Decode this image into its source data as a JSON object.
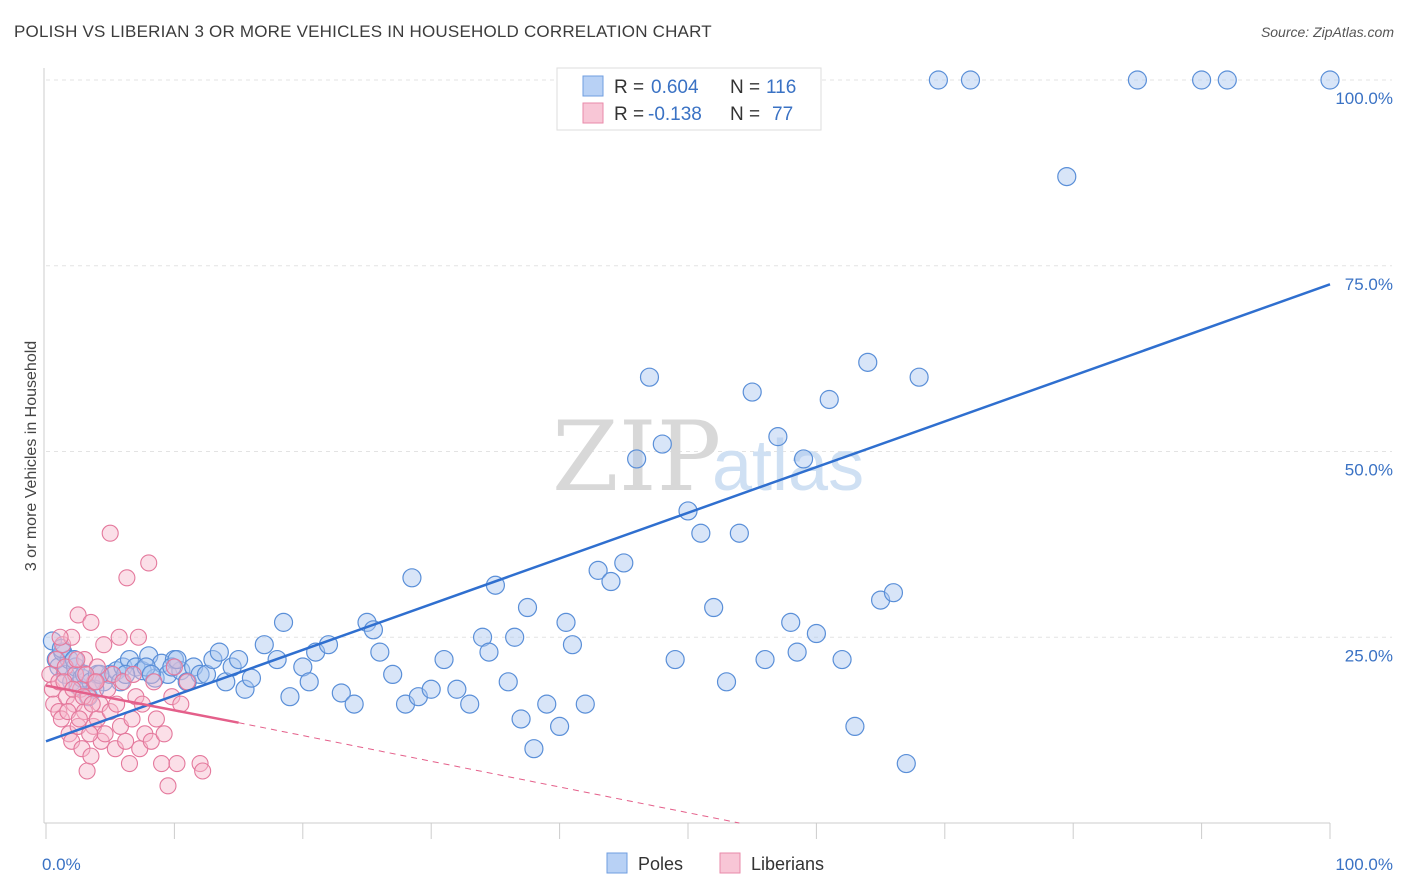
{
  "title": "POLISH VS LIBERIAN 3 OR MORE VEHICLES IN HOUSEHOLD CORRELATION CHART",
  "source": "Source: ZipAtlas.com",
  "watermark": {
    "zip": "ZIP",
    "atlas": "atlas"
  },
  "legend": {
    "r_label": "R =",
    "n_label": "N =",
    "items": [
      {
        "name": "Poles",
        "r": "0.604",
        "n": "116",
        "fill": "#b8d1f5",
        "stroke": "#6f9ee0"
      },
      {
        "name": "Liberians",
        "r": "-0.138",
        "n": "77",
        "fill": "#f8c6d6",
        "stroke": "#e98aa9"
      }
    ]
  },
  "colors": {
    "poles_point": "#a9c6ef",
    "poles_stroke": "#5a8fd8",
    "poles_line": "#2f6fcf",
    "liberians_point": "#f6b8cc",
    "liberians_stroke": "#e4789c",
    "liberians_line": "#e45f8a",
    "grid": "#e3e3e3",
    "axis_text": "#3a72c4"
  },
  "chart_data": {
    "type": "scatter",
    "ylabel": "3 or more Vehicles in Household",
    "xlabel": "",
    "xlim": [
      0,
      100
    ],
    "ylim": [
      0,
      100
    ],
    "x_tick_labels": [
      {
        "value": 0,
        "label": "0.0%"
      },
      {
        "value": 100,
        "label": "100.0%"
      }
    ],
    "y_tick_labels": [
      {
        "value": 25,
        "label": "25.0%"
      },
      {
        "value": 50,
        "label": "50.0%"
      },
      {
        "value": 75,
        "label": "75.0%"
      },
      {
        "value": 100,
        "label": "100.0%"
      }
    ],
    "grid": true,
    "series": [
      {
        "name": "Poles",
        "trend": {
          "x": [
            0,
            100
          ],
          "y": [
            11.0,
            72.5
          ]
        },
        "points": [
          [
            0.5,
            24.5
          ],
          [
            0.8,
            22
          ],
          [
            1,
            21
          ],
          [
            1.3,
            23
          ],
          [
            1.5,
            20
          ],
          [
            1.8,
            22
          ],
          [
            2,
            19
          ],
          [
            2.3,
            21
          ],
          [
            2.5,
            18.5
          ],
          [
            2.8,
            19.5
          ],
          [
            3,
            20
          ],
          [
            3.3,
            17
          ],
          [
            3.5,
            19
          ],
          [
            4,
            20
          ],
          [
            4.5,
            19
          ],
          [
            5,
            20
          ],
          [
            5.5,
            20.5
          ],
          [
            6,
            21
          ],
          [
            6.5,
            22
          ],
          [
            7,
            21
          ],
          [
            7.5,
            20.5
          ],
          [
            8,
            22.5
          ],
          [
            8.5,
            19.5
          ],
          [
            9,
            21.5
          ],
          [
            9.5,
            20
          ],
          [
            10,
            22
          ],
          [
            10.5,
            20.5
          ],
          [
            11,
            19
          ],
          [
            11.5,
            21
          ],
          [
            12,
            20
          ],
          [
            12.5,
            20
          ],
          [
            13,
            22
          ],
          [
            13.5,
            23
          ],
          [
            14,
            19
          ],
          [
            14.5,
            21
          ],
          [
            15,
            22
          ],
          [
            15.5,
            18
          ],
          [
            16,
            19.5
          ],
          [
            17,
            24
          ],
          [
            18,
            22
          ],
          [
            18.5,
            27
          ],
          [
            19,
            17
          ],
          [
            20,
            21
          ],
          [
            20.5,
            19
          ],
          [
            21,
            23
          ],
          [
            22,
            24
          ],
          [
            23,
            17.5
          ],
          [
            24,
            16
          ],
          [
            25,
            27
          ],
          [
            25.5,
            26
          ],
          [
            26,
            23
          ],
          [
            27,
            20
          ],
          [
            28,
            16
          ],
          [
            28.5,
            33
          ],
          [
            29,
            17
          ],
          [
            30,
            18
          ],
          [
            31,
            22
          ],
          [
            32,
            18
          ],
          [
            33,
            16
          ],
          [
            34,
            25
          ],
          [
            34.5,
            23
          ],
          [
            35,
            32
          ],
          [
            36,
            19
          ],
          [
            36.5,
            25
          ],
          [
            37,
            14
          ],
          [
            37.5,
            29
          ],
          [
            38,
            10
          ],
          [
            39,
            16
          ],
          [
            40,
            13
          ],
          [
            40.5,
            27
          ],
          [
            41,
            24
          ],
          [
            42,
            16
          ],
          [
            43,
            34
          ],
          [
            44,
            32.5
          ],
          [
            45,
            35
          ],
          [
            46,
            49
          ],
          [
            47,
            60
          ],
          [
            48,
            51
          ],
          [
            49,
            22
          ],
          [
            50,
            42
          ],
          [
            51,
            39
          ],
          [
            52,
            29
          ],
          [
            53,
            19
          ],
          [
            54,
            39
          ],
          [
            55,
            58
          ],
          [
            56,
            22
          ],
          [
            57,
            52
          ],
          [
            58,
            27
          ],
          [
            58.5,
            23
          ],
          [
            59,
            49
          ],
          [
            60,
            25.5
          ],
          [
            61,
            57
          ],
          [
            62,
            22
          ],
          [
            63,
            13
          ],
          [
            64,
            62
          ],
          [
            65,
            30
          ],
          [
            66,
            31
          ],
          [
            67,
            8
          ],
          [
            68,
            60
          ],
          [
            69.5,
            100
          ],
          [
            72,
            100
          ],
          [
            79.5,
            87
          ],
          [
            85,
            100
          ],
          [
            90,
            100
          ],
          [
            92,
            100
          ],
          [
            100,
            100
          ],
          [
            1.2,
            23.5
          ],
          [
            2.2,
            22
          ],
          [
            3.8,
            18
          ],
          [
            4.2,
            20
          ],
          [
            5.8,
            19
          ],
          [
            6.2,
            20
          ],
          [
            7.8,
            21
          ],
          [
            8.2,
            20
          ],
          [
            9.8,
            21
          ],
          [
            10.2,
            22
          ]
        ]
      },
      {
        "name": "Liberians",
        "trend": {
          "x": [
            0,
            15
          ],
          "y": [
            18.5,
            13.5
          ]
        },
        "trend_dashed": {
          "x": [
            15,
            54
          ],
          "y": [
            13.5,
            0
          ]
        },
        "points": [
          [
            0.3,
            20
          ],
          [
            0.5,
            18
          ],
          [
            0.6,
            16
          ],
          [
            0.8,
            22
          ],
          [
            1,
            15
          ],
          [
            1,
            19
          ],
          [
            1.2,
            14
          ],
          [
            1.3,
            24
          ],
          [
            1.5,
            21
          ],
          [
            1.6,
            17
          ],
          [
            1.8,
            12
          ],
          [
            2,
            11
          ],
          [
            2,
            25
          ],
          [
            2.2,
            16
          ],
          [
            2.3,
            20
          ],
          [
            2.5,
            13
          ],
          [
            2.5,
            28
          ],
          [
            2.7,
            18
          ],
          [
            2.8,
            10
          ],
          [
            3,
            15
          ],
          [
            3,
            22
          ],
          [
            3.2,
            7
          ],
          [
            3.3,
            17
          ],
          [
            3.5,
            9
          ],
          [
            3.5,
            27
          ],
          [
            3.7,
            13
          ],
          [
            3.8,
            19
          ],
          [
            4,
            14
          ],
          [
            4,
            21
          ],
          [
            4.2,
            16
          ],
          [
            4.3,
            11
          ],
          [
            4.5,
            24
          ],
          [
            4.6,
            12
          ],
          [
            4.8,
            18
          ],
          [
            5,
            39
          ],
          [
            5,
            15
          ],
          [
            5.2,
            20
          ],
          [
            5.4,
            10
          ],
          [
            5.5,
            16
          ],
          [
            5.7,
            25
          ],
          [
            5.8,
            13
          ],
          [
            6,
            19
          ],
          [
            6.2,
            11
          ],
          [
            6.3,
            33
          ],
          [
            6.5,
            8
          ],
          [
            6.7,
            14
          ],
          [
            6.8,
            20
          ],
          [
            7,
            17
          ],
          [
            7.2,
            25
          ],
          [
            7.3,
            10
          ],
          [
            7.5,
            16
          ],
          [
            7.7,
            12
          ],
          [
            8,
            35
          ],
          [
            8.2,
            11
          ],
          [
            8.4,
            19
          ],
          [
            8.6,
            14
          ],
          [
            9,
            8
          ],
          [
            9.2,
            12
          ],
          [
            9.5,
            5
          ],
          [
            9.8,
            17
          ],
          [
            10,
            21
          ],
          [
            10.2,
            8
          ],
          [
            10.5,
            16
          ],
          [
            11,
            19
          ],
          [
            12,
            8
          ],
          [
            12.2,
            7
          ],
          [
            1.1,
            25
          ],
          [
            1.4,
            19
          ],
          [
            1.7,
            15
          ],
          [
            2.1,
            18
          ],
          [
            2.4,
            22
          ],
          [
            2.6,
            14
          ],
          [
            2.9,
            17
          ],
          [
            3.1,
            20
          ],
          [
            3.4,
            12
          ],
          [
            3.6,
            16
          ],
          [
            3.9,
            19
          ]
        ]
      }
    ]
  }
}
